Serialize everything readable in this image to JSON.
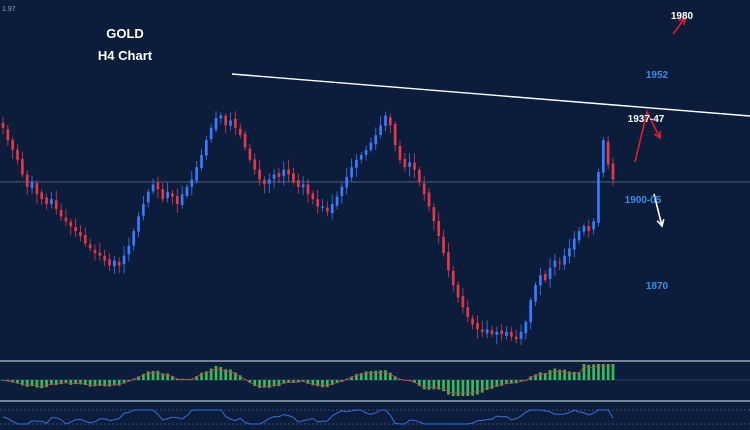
{
  "chart_data": {
    "type": "candlestick",
    "title": "GOLD",
    "subtitle": "H4 Chart",
    "corner_label": "1.97",
    "up_color": "#3a7bff",
    "down_color": "#e0394a",
    "price_range": [
      1845,
      1985
    ],
    "closes": [
      1935,
      1930,
      1926,
      1922,
      1916,
      1911,
      1913,
      1908,
      1906,
      1904,
      1906,
      1902,
      1899,
      1897,
      1895,
      1893,
      1891,
      1888,
      1886,
      1884,
      1883,
      1881,
      1879,
      1881,
      1879,
      1883,
      1887,
      1893,
      1899,
      1904,
      1909,
      1912,
      1910,
      1906,
      1909,
      1907,
      1904,
      1908,
      1911,
      1914,
      1919,
      1924,
      1930,
      1935,
      1939,
      1940,
      1936,
      1938,
      1935,
      1932,
      1927,
      1922,
      1918,
      1914,
      1912,
      1914,
      1916,
      1915,
      1918,
      1916,
      1913,
      1911,
      1912,
      1908,
      1906,
      1903,
      1903,
      1901,
      1904,
      1907,
      1911,
      1915,
      1919,
      1922,
      1924,
      1926,
      1929,
      1932,
      1936,
      1940,
      1936,
      1928,
      1922,
      1919,
      1921,
      1918,
      1913,
      1908,
      1903,
      1897,
      1891,
      1884,
      1877,
      1871,
      1866,
      1862,
      1858,
      1855,
      1853,
      1852,
      1853,
      1851,
      1852,
      1851,
      1852,
      1850,
      1849,
      1852,
      1856,
      1865,
      1871,
      1875,
      1873,
      1878,
      1881,
      1880,
      1883,
      1886,
      1890,
      1893,
      1895,
      1893,
      1897,
      1917,
      1930,
      1920,
      1914
    ],
    "annotations": [
      {
        "label": "1980",
        "price": 1981,
        "color": "#ffffff"
      },
      {
        "label": "1952",
        "price": 1957,
        "color": "#3a8ee6"
      },
      {
        "label": "1937-47",
        "price": 1939,
        "color": "#ffffff"
      },
      {
        "label": "1900-05",
        "price": 1906,
        "color": "#3a8ee6"
      },
      {
        "label": "1870",
        "price": 1871,
        "color": "#3a8ee6"
      }
    ],
    "trendline_color": "#ffffff",
    "horizontal_line_price": 1913,
    "arrow_colors": {
      "red": "#e0202e",
      "white": "#ffffff"
    },
    "histogram_color": "#2fbf5b",
    "oscillator_color": "#3070e0"
  }
}
